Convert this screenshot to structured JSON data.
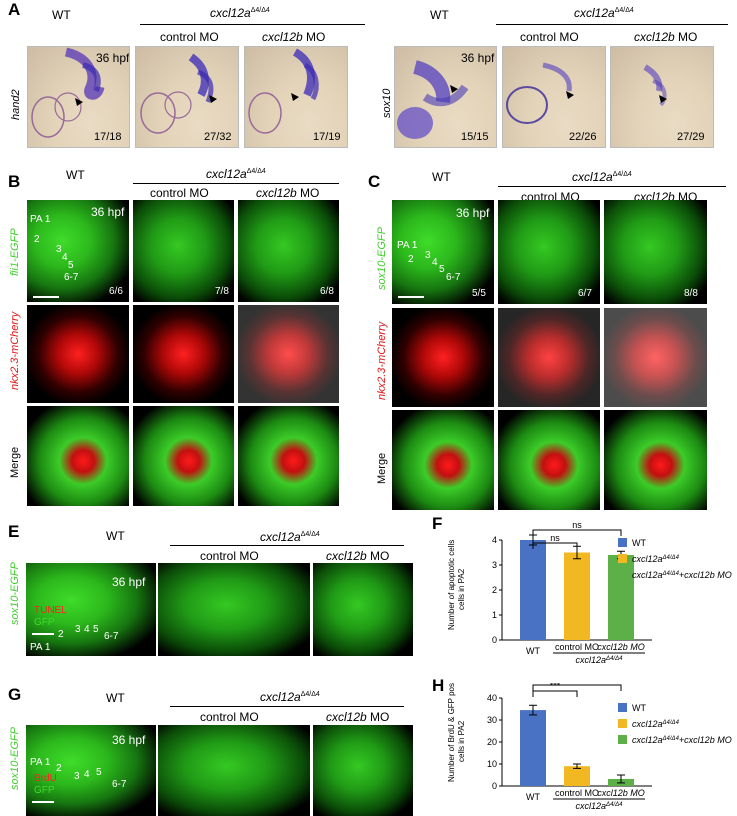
{
  "panel_letters": {
    "A": "A",
    "B": "B",
    "C": "C",
    "E": "E",
    "F": "F",
    "G": "G",
    "H": "H"
  },
  "genotype_wt": "WT",
  "genotype_mut": "cxcl12a",
  "genotype_sup": "Δ4/Δ4",
  "control_mo": "control MO",
  "cxcl12b_mo": "cxcl12b MO",
  "cxcl12b_label": "cxcl12b",
  "mo_label": "MO",
  "stage": "36 hpf",
  "panelA": {
    "left_gene": "hand2",
    "left_counts": [
      "17/18",
      "27/32",
      "17/19"
    ],
    "right_gene": "sox10",
    "right_counts": [
      "15/15",
      "22/26",
      "27/29"
    ]
  },
  "panelB": {
    "row_labels": [
      "fli1-EGFP",
      "nkx2.3-mCherry",
      "Merge"
    ],
    "counts": [
      "6/6",
      "7/8",
      "6/8"
    ],
    "pa_labels": [
      "PA 1",
      "2",
      "3",
      "4",
      "5",
      "6-7"
    ]
  },
  "panelC": {
    "row_labels": [
      "sox10-EGFP",
      "nkx2.3-mCherry",
      "Merge"
    ],
    "counts": [
      "5/5",
      "6/7",
      "8/8"
    ],
    "pa_labels": [
      "PA 1",
      "2",
      "3",
      "4",
      "5",
      "6-7"
    ]
  },
  "panelE": {
    "row_label": "sox10-EGFP",
    "stain_label": "TUNEL",
    "gfp_label": "GFP",
    "pa_labels": [
      "PA 1",
      "2",
      "3",
      "4",
      "5",
      "6-7"
    ]
  },
  "panelG": {
    "row_label": "sox10-EGFP",
    "stain_label": "BrdU",
    "gfp_label": "GFP",
    "pa_labels": [
      "PA 1",
      "2",
      "3",
      "4",
      "5",
      "6-7"
    ]
  },
  "chart_data": [
    {
      "type": "bar",
      "panel": "F",
      "categories": [
        "WT",
        "cxcl12a Δ4/Δ4 + control MO",
        "cxcl12a Δ4/Δ4 + cxcl12b MO"
      ],
      "values": [
        4.0,
        3.5,
        3.4
      ],
      "errors": [
        0.2,
        0.25,
        0.15
      ],
      "colors": [
        "#4a72c4",
        "#f2b823",
        "#5cb047"
      ],
      "ylabel_line1": "Number of apoptotic cells",
      "ylabel_line2": "cells in PA2",
      "ylim": [
        0,
        4
      ],
      "yticks": [
        0,
        1,
        2,
        3,
        4
      ],
      "significance": [
        "ns",
        "ns"
      ],
      "legend": [
        "WT",
        "cxcl12aΔ4/Δ4",
        "cxcl12aΔ4/Δ4+cxcl12b MO"
      ],
      "legend_position": "right"
    },
    {
      "type": "bar",
      "panel": "H",
      "categories": [
        "WT",
        "cxcl12a Δ4/Δ4 + control MO",
        "cxcl12a Δ4/Δ4 + cxcl12b MO"
      ],
      "values": [
        34.5,
        9.0,
        3.2
      ],
      "errors": [
        2.2,
        1.0,
        1.8
      ],
      "colors": [
        "#4a72c4",
        "#f2b823",
        "#5cb047"
      ],
      "ylabel_line1": "Number of BrdU & GFP positive",
      "ylabel_line2": "cells in PA2",
      "ylim": [
        0,
        40
      ],
      "yticks": [
        0,
        10,
        20,
        30,
        40
      ],
      "significance": [
        "***",
        "***"
      ],
      "legend": [
        "WT",
        "cxcl12aΔ4/Δ4",
        "cxcl12aΔ4/Δ4+cxcl12b MO"
      ],
      "legend_position": "right"
    }
  ]
}
